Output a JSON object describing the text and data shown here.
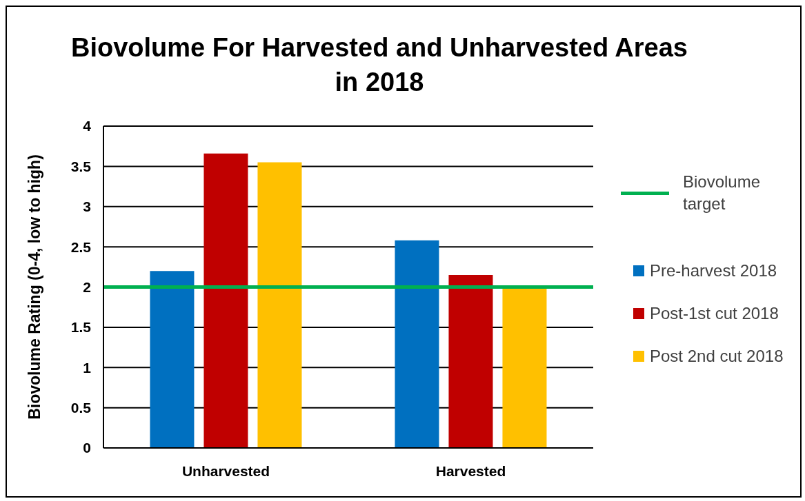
{
  "chart_data": {
    "type": "bar",
    "title": "Biovolume For Harvested and Unharvested Areas in 2018",
    "ylabel": "Biovolume Rating (0-4, low to high)",
    "categories": [
      "Unharvested",
      "Harvested"
    ],
    "series": [
      {
        "name": "Pre-harvest 2018",
        "color": "#0070c0",
        "values": [
          2.2,
          2.58
        ]
      },
      {
        "name": "Post-1st cut 2018",
        "color": "#c00000",
        "values": [
          3.66,
          2.15
        ]
      },
      {
        "name": "Post 2nd cut 2018",
        "color": "#ffc000",
        "values": [
          3.55,
          1.98
        ]
      }
    ],
    "ylim": [
      0,
      4
    ],
    "yticks": [
      0,
      0.5,
      1,
      1.5,
      2,
      2.5,
      3,
      3.5,
      4
    ],
    "grid": "y",
    "legend": "right",
    "ref_lines": [
      {
        "axis": "y",
        "value": 2,
        "label": "Biovolume target",
        "color": "#00b050"
      }
    ]
  }
}
